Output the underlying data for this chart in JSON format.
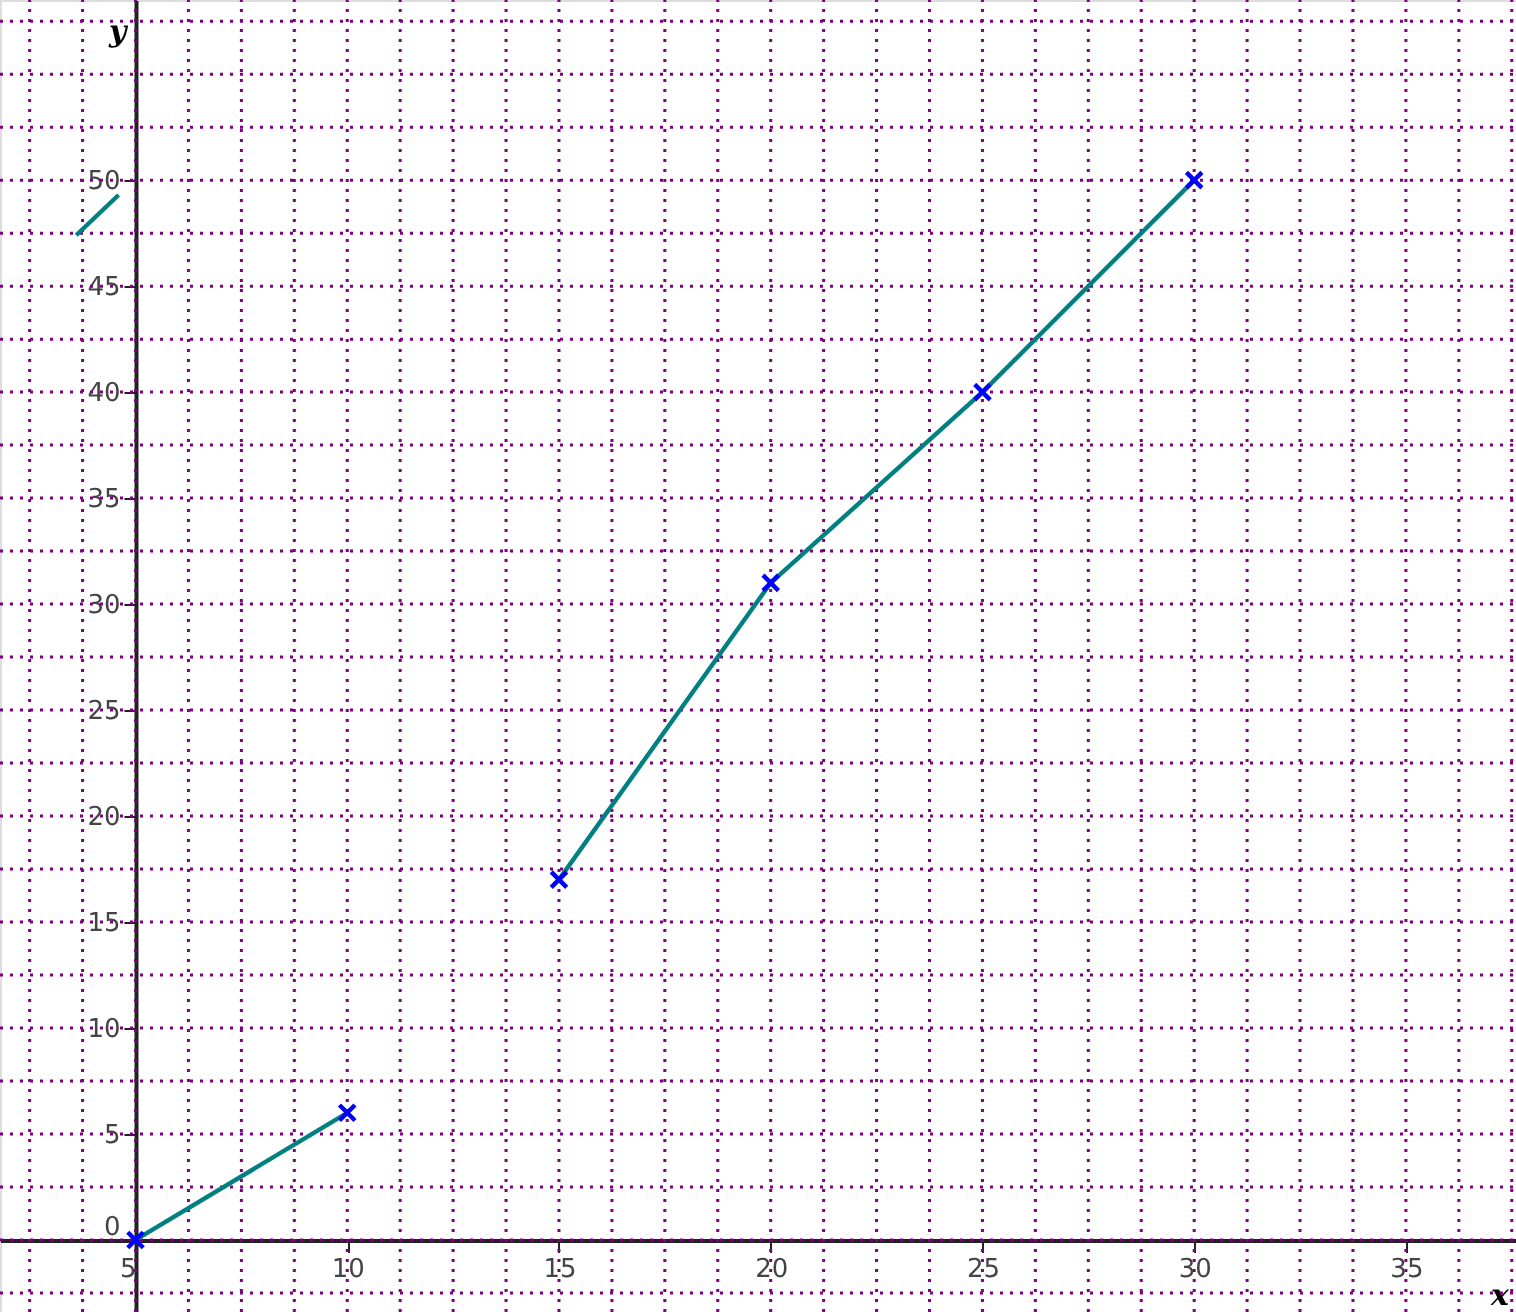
{
  "chart_data": {
    "type": "line",
    "xlabel": "x",
    "ylabel": "y",
    "xlim": [
      1.8,
      37.6
    ],
    "ylim": [
      -3.4,
      58.5
    ],
    "xticks": [
      5,
      10,
      15,
      20,
      25,
      30,
      35
    ],
    "yticks": [
      0,
      5,
      10,
      15,
      20,
      25,
      30,
      35,
      40,
      45,
      50
    ],
    "grid": true,
    "marker": "cross",
    "line_style": "solid",
    "series": [
      {
        "color": "#008080",
        "x": [
          5,
          10
        ],
        "values": [
          0,
          6
        ]
      },
      {
        "color": "#008080",
        "x": [
          15,
          20,
          25,
          30
        ],
        "values": [
          17,
          31,
          40,
          50
        ]
      },
      {
        "color": "#008080",
        "x": [
          3.6,
          4.6
        ],
        "values": [
          47.4,
          49.3
        ],
        "marker": "none"
      }
    ]
  }
}
